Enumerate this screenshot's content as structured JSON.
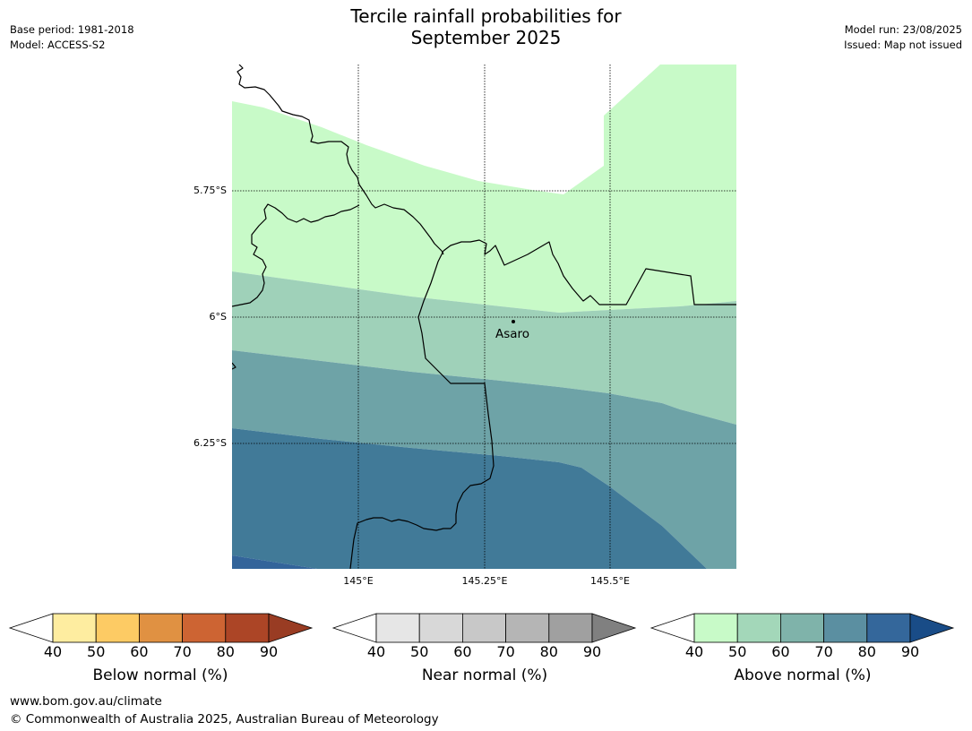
{
  "header": {
    "title_line1": "Tercile rainfall probabilities for",
    "title_line2": "September 2025",
    "base_period": "Base period: 1981-2018",
    "model": "Model: ACCESS-S2",
    "model_run": "Model run: 23/08/2025",
    "issued": "Issued: Map not issued"
  },
  "map": {
    "lat_labels": [
      "5.75°S",
      "6°S",
      "6.25°S"
    ],
    "lon_labels": [
      "145°E",
      "145.25°E",
      "145.5°E"
    ],
    "place_name": "Asaro",
    "fill_colors": {
      "above_40_50": "#c8fac8",
      "above_50_60": "#9fd1b9",
      "above_60_70": "#6ea3a7",
      "above_70_80": "#417a98",
      "above_80_90": "#33649a"
    }
  },
  "colorbars": [
    {
      "label": "Below normal (%)",
      "ticks": [
        "40",
        "50",
        "60",
        "70",
        "80",
        "90"
      ],
      "colors": [
        "#ffffff",
        "#feeda0",
        "#fdcb64",
        "#e09142",
        "#cd6433",
        "#ac4526",
        "#993c23"
      ]
    },
    {
      "label": "Near normal (%)",
      "ticks": [
        "40",
        "50",
        "60",
        "70",
        "80",
        "90"
      ],
      "colors": [
        "#ffffff",
        "#e6e6e6",
        "#d8d8d8",
        "#c8c8c8",
        "#b5b5b5",
        "#a0a0a0",
        "#808080"
      ]
    },
    {
      "label": "Above normal (%)",
      "ticks": [
        "40",
        "50",
        "60",
        "70",
        "80",
        "90"
      ],
      "colors": [
        "#ffffff",
        "#c8fac8",
        "#a3d7b9",
        "#7fb3aa",
        "#5b8fa1",
        "#34679b",
        "#194c87"
      ]
    }
  ],
  "footer": {
    "url": "www.bom.gov.au/climate",
    "copyright": "© Commonwealth of Australia 2025, Australian Bureau of Meteorology"
  }
}
